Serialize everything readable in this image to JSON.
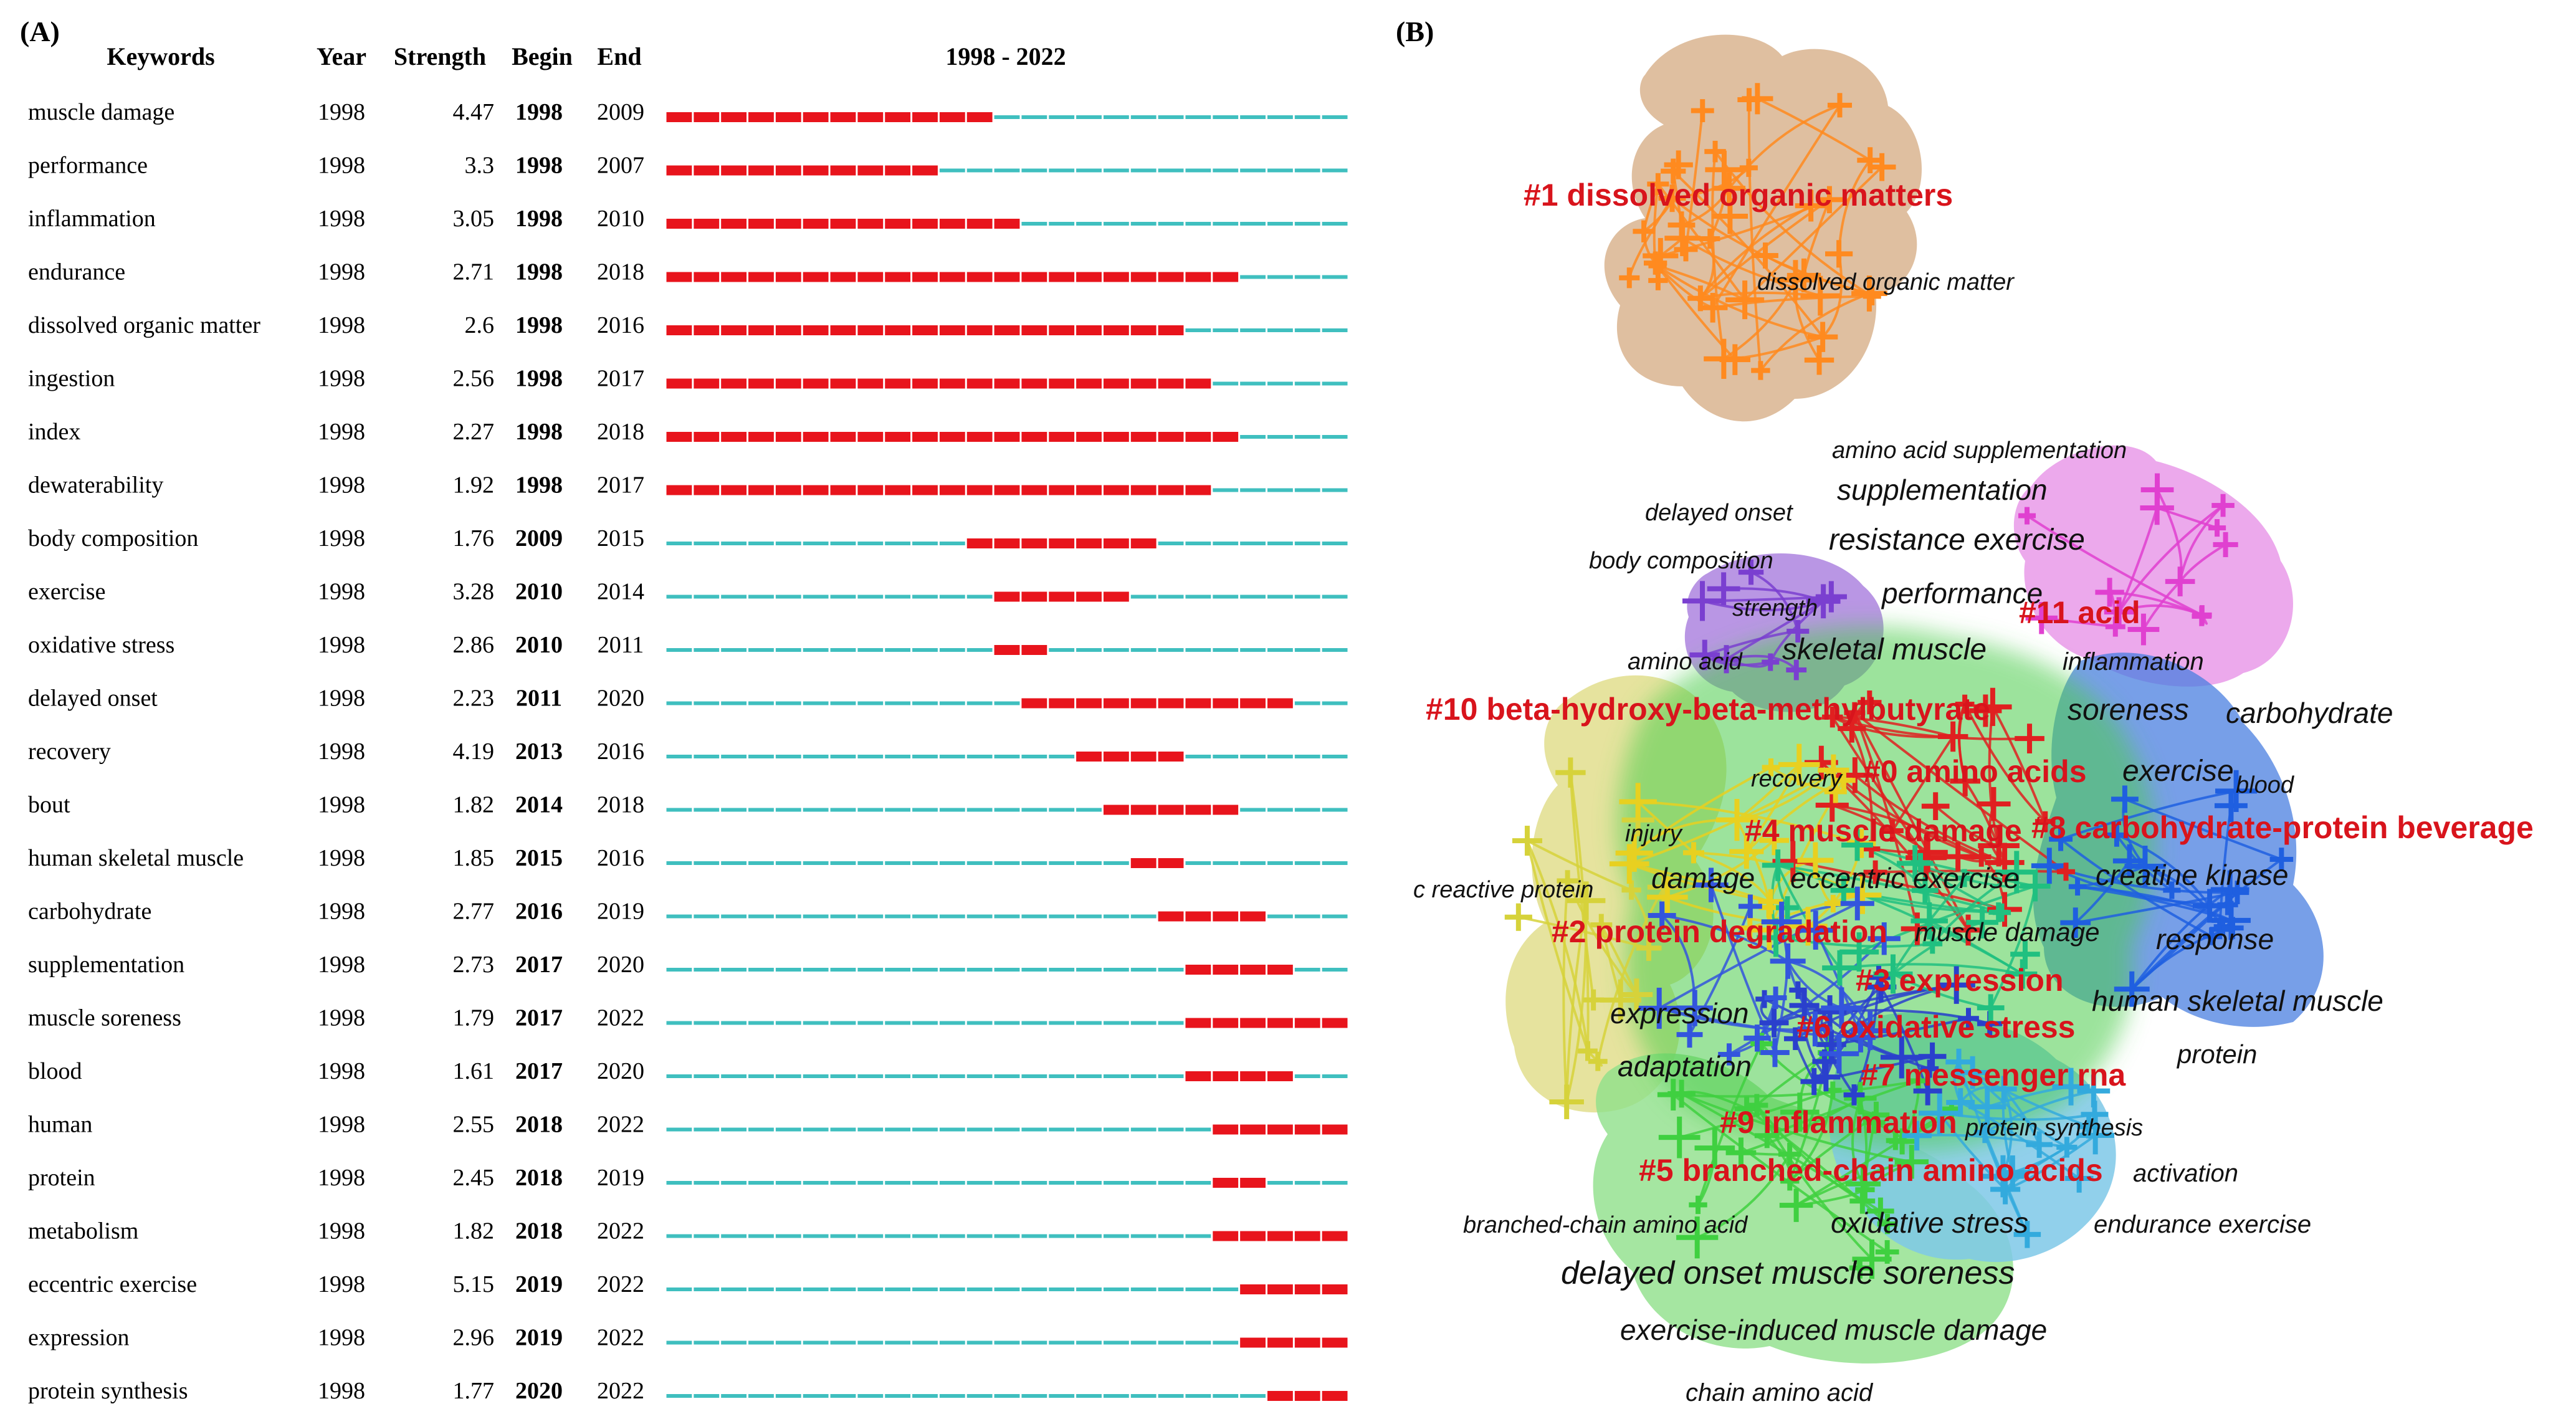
{
  "chart_data": [
    {
      "type": "table",
      "panel_label": "(A)",
      "headers": [
        "Keywords",
        "Year",
        "Strength",
        "Begin",
        "End",
        "1998 - 2022"
      ],
      "timeline": {
        "start": 1998,
        "end": 2022
      },
      "colors": {
        "burst": "#e8141c",
        "baseline": "#3fbfbf"
      },
      "rows": [
        {
          "keyword": "muscle damage",
          "year": "1998",
          "strength": "4.47",
          "begin": "1998",
          "end": "2009"
        },
        {
          "keyword": "performance",
          "year": "1998",
          "strength": "3.3",
          "begin": "1998",
          "end": "2007"
        },
        {
          "keyword": "inflammation",
          "year": "1998",
          "strength": "3.05",
          "begin": "1998",
          "end": "2010"
        },
        {
          "keyword": "endurance",
          "year": "1998",
          "strength": "2.71",
          "begin": "1998",
          "end": "2018"
        },
        {
          "keyword": "dissolved organic matter",
          "year": "1998",
          "strength": "2.6",
          "begin": "1998",
          "end": "2016"
        },
        {
          "keyword": "ingestion",
          "year": "1998",
          "strength": "2.56",
          "begin": "1998",
          "end": "2017"
        },
        {
          "keyword": "index",
          "year": "1998",
          "strength": "2.27",
          "begin": "1998",
          "end": "2018"
        },
        {
          "keyword": "dewaterability",
          "year": "1998",
          "strength": "1.92",
          "begin": "1998",
          "end": "2017"
        },
        {
          "keyword": "body composition",
          "year": "1998",
          "strength": "1.76",
          "begin": "2009",
          "end": "2015"
        },
        {
          "keyword": "exercise",
          "year": "1998",
          "strength": "3.28",
          "begin": "2010",
          "end": "2014"
        },
        {
          "keyword": "oxidative stress",
          "year": "1998",
          "strength": "2.86",
          "begin": "2010",
          "end": "2011"
        },
        {
          "keyword": "delayed onset",
          "year": "1998",
          "strength": "2.23",
          "begin": "2011",
          "end": "2020"
        },
        {
          "keyword": "recovery",
          "year": "1998",
          "strength": "4.19",
          "begin": "2013",
          "end": "2016"
        },
        {
          "keyword": "bout",
          "year": "1998",
          "strength": "1.82",
          "begin": "2014",
          "end": "2018"
        },
        {
          "keyword": "human skeletal muscle",
          "year": "1998",
          "strength": "1.85",
          "begin": "2015",
          "end": "2016"
        },
        {
          "keyword": "carbohydrate",
          "year": "1998",
          "strength": "2.77",
          "begin": "2016",
          "end": "2019"
        },
        {
          "keyword": "supplementation",
          "year": "1998",
          "strength": "2.73",
          "begin": "2017",
          "end": "2020"
        },
        {
          "keyword": "muscle soreness",
          "year": "1998",
          "strength": "1.79",
          "begin": "2017",
          "end": "2022"
        },
        {
          "keyword": "blood",
          "year": "1998",
          "strength": "1.61",
          "begin": "2017",
          "end": "2020"
        },
        {
          "keyword": "human",
          "year": "1998",
          "strength": "2.55",
          "begin": "2018",
          "end": "2022"
        },
        {
          "keyword": "protein",
          "year": "1998",
          "strength": "2.45",
          "begin": "2018",
          "end": "2019"
        },
        {
          "keyword": "metabolism",
          "year": "1998",
          "strength": "1.82",
          "begin": "2018",
          "end": "2022"
        },
        {
          "keyword": "eccentric exercise",
          "year": "1998",
          "strength": "5.15",
          "begin": "2019",
          "end": "2022"
        },
        {
          "keyword": "expression",
          "year": "1998",
          "strength": "2.96",
          "begin": "2019",
          "end": "2022"
        },
        {
          "keyword": "protein synthesis",
          "year": "1998",
          "strength": "1.77",
          "begin": "2020",
          "end": "2022"
        }
      ]
    },
    {
      "type": "network",
      "panel_label": "(B)",
      "clusters": [
        {
          "id": 0,
          "label": "#0 amino acids",
          "color": "#e02020"
        },
        {
          "id": 1,
          "label": "#1 dissolved organic matters",
          "color": "#ff8a1f"
        },
        {
          "id": 2,
          "label": "#2 protein degradation",
          "color": "#7a3fd0"
        },
        {
          "id": 3,
          "label": "#3 expression",
          "color": "#3355dd"
        },
        {
          "id": 4,
          "label": "#4 muscle damage",
          "color": "#e8d020"
        },
        {
          "id": 5,
          "label": "#5 branched-chain amino acids",
          "color": "#3fd040"
        },
        {
          "id": 6,
          "label": "#6 oxidative stress",
          "color": "#33aadd"
        },
        {
          "id": 7,
          "label": "#7 messenger rna",
          "color": "#2a40cc"
        },
        {
          "id": 8,
          "label": "#8 carbohydrate-protein beverage",
          "color": "#1f5fe0"
        },
        {
          "id": 9,
          "label": "#9 inflammation",
          "color": "#20c080"
        },
        {
          "id": 10,
          "label": "#10 beta-hydroxy-beta-methylbutyrate",
          "color": "#d6d23a"
        },
        {
          "id": 11,
          "label": "#11 acid",
          "color": "#e040d0"
        }
      ],
      "keyword_labels": [
        "dissolved organic matter",
        "amino acid supplementation",
        "supplementation",
        "delayed onset",
        "resistance exercise",
        "body composition",
        "performance",
        "strength",
        "skeletal muscle",
        "amino acid",
        "inflammation",
        "soreness",
        "carbohydrate",
        "exercise",
        "recovery",
        "blood",
        "injury",
        "damage",
        "eccentric exercise",
        "creatine kinase",
        "c reactive protein",
        "muscle damage",
        "response",
        "human skeletal muscle",
        "expression",
        "protein",
        "adaptation",
        "protein synthesis",
        "activation",
        "branched-chain amino acid",
        "oxidative stress",
        "endurance exercise",
        "delayed onset muscle soreness",
        "exercise-induced muscle damage",
        "chain amino acid"
      ]
    }
  ]
}
